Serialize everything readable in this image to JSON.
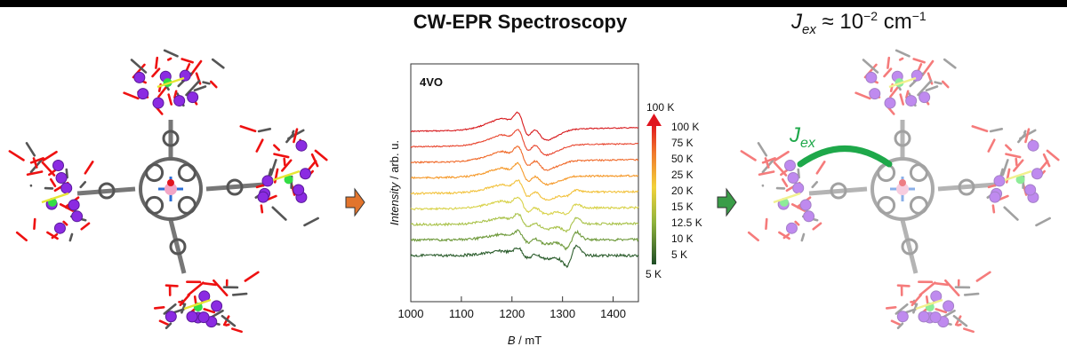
{
  "header": {
    "title": "CW-EPR Spectroscopy",
    "exchange": {
      "symbol": "J",
      "subscript": "ex",
      "relation": "≈ 10",
      "exponent": "−2",
      "unit": "cm",
      "unit_exponent": "−1"
    }
  },
  "left_molecule": {
    "name": "porphyrin-polyoxovanadate assembly"
  },
  "right_molecule": {
    "coupling_label": "J",
    "coupling_subscript": "ex"
  },
  "arrows": {
    "left_color": "#e2742c",
    "right_color": "#3a9d48"
  },
  "chart_data": {
    "type": "line",
    "sample_label": "4VO",
    "xlabel_symbol": "B",
    "xlabel_unit": " / mT",
    "ylabel_symbol": "Intensity",
    "ylabel_unit": " / arb. u.",
    "xlim": [
      1000,
      1450
    ],
    "xticks": [
      "1000",
      "1100",
      "1200",
      "1300",
      "1400"
    ],
    "gradient_top": "100 K",
    "gradient_bottom": "5 K",
    "series": [
      {
        "name": "100 K",
        "color": "#d7191c",
        "offset": 0
      },
      {
        "name": "75 K",
        "color": "#e8452e",
        "offset": 1
      },
      {
        "name": "50 K",
        "color": "#f06a2a",
        "offset": 2
      },
      {
        "name": "25 K",
        "color": "#f59a2c",
        "offset": 3
      },
      {
        "name": "20 K",
        "color": "#f2c13a",
        "offset": 4
      },
      {
        "name": "15 K",
        "color": "#d8d24a",
        "offset": 5
      },
      {
        "name": "12.5 K",
        "color": "#a9c24a",
        "offset": 6
      },
      {
        "name": "10 K",
        "color": "#6f9a3c",
        "offset": 7
      },
      {
        "name": "5 K",
        "color": "#2d5e2e",
        "offset": 8
      }
    ]
  }
}
